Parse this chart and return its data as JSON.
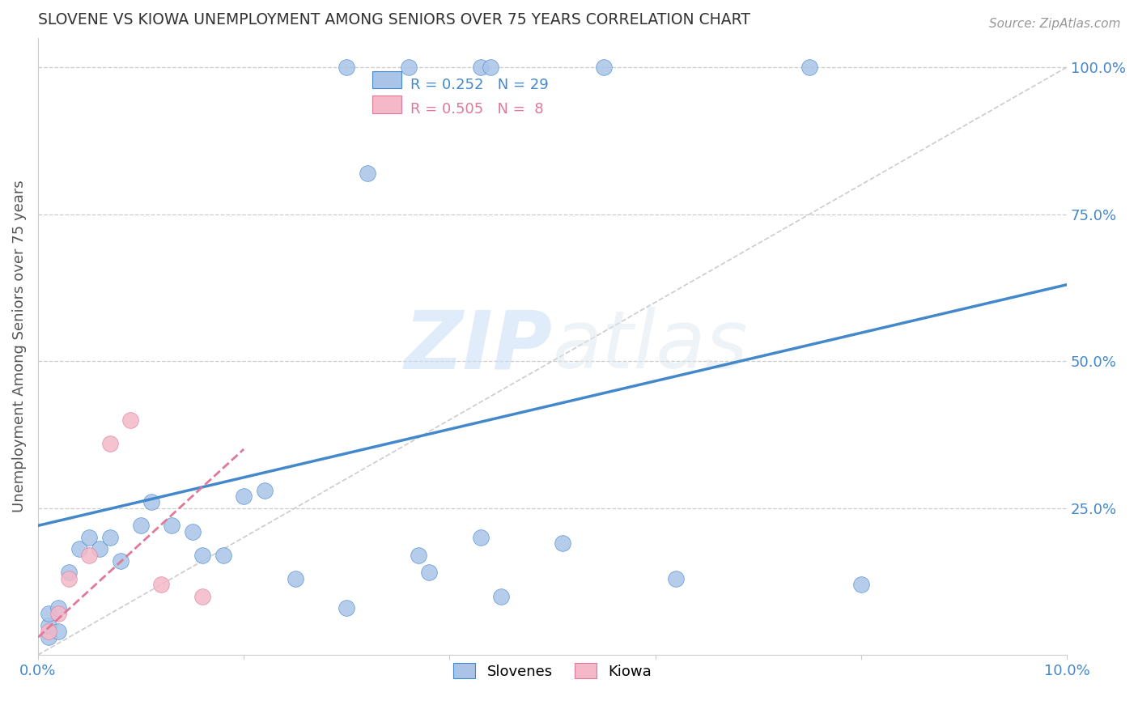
{
  "title": "SLOVENE VS KIOWA UNEMPLOYMENT AMONG SENIORS OVER 75 YEARS CORRELATION CHART",
  "source": "Source: ZipAtlas.com",
  "ylabel": "Unemployment Among Seniors over 75 years",
  "xlim": [
    0.0,
    0.1
  ],
  "ylim": [
    0.0,
    1.05
  ],
  "xticks": [
    0.0,
    0.02,
    0.04,
    0.06,
    0.08,
    0.1
  ],
  "xticklabels": [
    "0.0%",
    "",
    "",
    "",
    "",
    "10.0%"
  ],
  "yticks_right": [
    0.0,
    0.25,
    0.5,
    0.75,
    1.0
  ],
  "yticklabels_right": [
    "",
    "25.0%",
    "50.0%",
    "75.0%",
    "100.0%"
  ],
  "grid_color": "#cccccc",
  "background_color": "#ffffff",
  "slovenes_color": "#aac4e8",
  "kiowa_color": "#f4b8c8",
  "trendline_slovenes_color": "#4488cc",
  "trendline_kiowa_color": "#e07898",
  "diag_color": "#cccccc",
  "slovenes_x": [
    0.001,
    0.001,
    0.001,
    0.002,
    0.002,
    0.003,
    0.004,
    0.005,
    0.006,
    0.007,
    0.008,
    0.01,
    0.011,
    0.013,
    0.015,
    0.016,
    0.018,
    0.02,
    0.022,
    0.025,
    0.03,
    0.032,
    0.037,
    0.038,
    0.043,
    0.045,
    0.051,
    0.062,
    0.08
  ],
  "slovenes_y": [
    0.03,
    0.05,
    0.07,
    0.08,
    0.04,
    0.14,
    0.18,
    0.2,
    0.18,
    0.2,
    0.16,
    0.22,
    0.26,
    0.22,
    0.21,
    0.17,
    0.17,
    0.27,
    0.28,
    0.13,
    0.08,
    0.82,
    0.17,
    0.14,
    0.2,
    0.1,
    0.19,
    0.13,
    0.12
  ],
  "slovenes_top_x": [
    0.03,
    0.036,
    0.043,
    0.044,
    0.055,
    0.075
  ],
  "slovenes_top_y": [
    1.0,
    1.0,
    1.0,
    1.0,
    1.0,
    1.0
  ],
  "kiowa_x": [
    0.001,
    0.002,
    0.003,
    0.005,
    0.007,
    0.009,
    0.012,
    0.016
  ],
  "kiowa_y": [
    0.04,
    0.07,
    0.13,
    0.17,
    0.36,
    0.4,
    0.12,
    0.1
  ],
  "slovenes_trendline_x": [
    0.0,
    0.1
  ],
  "slovenes_trendline_y": [
    0.22,
    0.63
  ],
  "kiowa_trendline_x": [
    0.0,
    0.02
  ],
  "kiowa_trendline_y": [
    0.03,
    0.35
  ],
  "diag_line_x": [
    0.0,
    0.1
  ],
  "diag_line_y": [
    0.0,
    1.0
  ]
}
